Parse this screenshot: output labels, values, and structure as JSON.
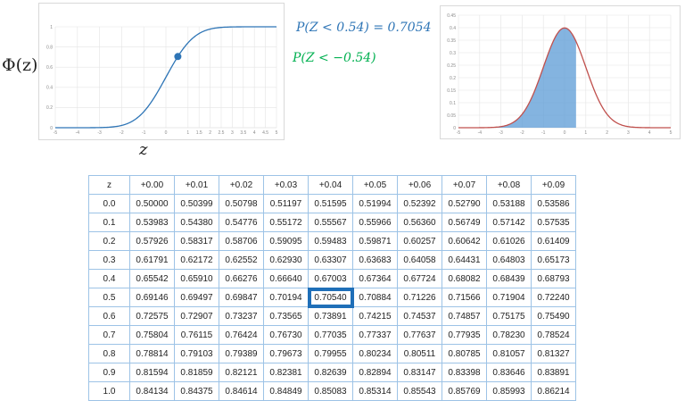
{
  "chart_data": [
    {
      "type": "line",
      "title": "",
      "xlabel": "z",
      "ylabel": "Φ(z)",
      "xlim": [
        -5,
        5
      ],
      "ylim": [
        0,
        1
      ],
      "x_ticks": [
        "-5",
        "-4",
        "-3",
        "-2",
        "-1",
        "0",
        "1",
        "1.5",
        "2",
        "2.5",
        "3",
        "3.5",
        "4",
        "4.5",
        "5"
      ],
      "x_tick_values": [
        -5,
        -4,
        -3,
        -2,
        -1,
        0,
        1,
        1.5,
        2,
        2.5,
        3,
        3.5,
        4,
        4.5,
        5
      ],
      "y_ticks": [
        "0",
        "0.2",
        "0.4",
        "0.6",
        "0.8",
        "1"
      ],
      "y_tick_values": [
        0,
        0.2,
        0.4,
        0.6,
        0.8,
        1
      ],
      "grid": true,
      "series": [
        {
          "function": "standard normal CDF",
          "color": "#2e75b6"
        }
      ],
      "highlight_point": {
        "x": 0.54,
        "y": 0.7054,
        "color": "#2e75b6"
      }
    },
    {
      "type": "area",
      "title": "",
      "xlabel": "",
      "ylabel": "",
      "xlim": [
        -5,
        5
      ],
      "ylim": [
        0,
        0.45
      ],
      "x_ticks": [
        "-5",
        "-4",
        "-3",
        "-2",
        "-1",
        "0",
        "1",
        "2",
        "3",
        "4",
        "5"
      ],
      "x_tick_values": [
        -5,
        -4,
        -3,
        -2,
        -1,
        0,
        1,
        2,
        3,
        4,
        5
      ],
      "y_ticks": [
        "0",
        "0.05",
        "0.1",
        "0.15",
        "0.2",
        "0.25",
        "0.3",
        "0.35",
        "0.4",
        "0.45"
      ],
      "y_tick_values": [
        0,
        0.05,
        0.1,
        0.15,
        0.2,
        0.25,
        0.3,
        0.35,
        0.4,
        0.45
      ],
      "grid": true,
      "series": [
        {
          "function": "standard normal PDF",
          "color": "#c0504d"
        }
      ],
      "shaded_region": {
        "from": -5,
        "to": 0.54,
        "color": "#5b9bd5"
      }
    },
    {
      "type": "table",
      "header": [
        "z",
        "+0.00",
        "+0.01",
        "+0.02",
        "+0.03",
        "+0.04",
        "+0.05",
        "+0.06",
        "+0.07",
        "+0.08",
        "+0.09"
      ],
      "rows": [
        [
          "0.0",
          "0.50000",
          "0.50399",
          "0.50798",
          "0.51197",
          "0.51595",
          "0.51994",
          "0.52392",
          "0.52790",
          "0.53188",
          "0.53586"
        ],
        [
          "0.1",
          "0.53983",
          "0.54380",
          "0.54776",
          "0.55172",
          "0.55567",
          "0.55966",
          "0.56360",
          "0.56749",
          "0.57142",
          "0.57535"
        ],
        [
          "0.2",
          "0.57926",
          "0.58317",
          "0.58706",
          "0.59095",
          "0.59483",
          "0.59871",
          "0.60257",
          "0.60642",
          "0.61026",
          "0.61409"
        ],
        [
          "0.3",
          "0.61791",
          "0.62172",
          "0.62552",
          "0.62930",
          "0.63307",
          "0.63683",
          "0.64058",
          "0.64431",
          "0.64803",
          "0.65173"
        ],
        [
          "0.4",
          "0.65542",
          "0.65910",
          "0.66276",
          "0.66640",
          "0.67003",
          "0.67364",
          "0.67724",
          "0.68082",
          "0.68439",
          "0.68793"
        ],
        [
          "0.5",
          "0.69146",
          "0.69497",
          "0.69847",
          "0.70194",
          "0.70540",
          "0.70884",
          "0.71226",
          "0.71566",
          "0.71904",
          "0.72240"
        ],
        [
          "0.6",
          "0.72575",
          "0.72907",
          "0.73237",
          "0.73565",
          "0.73891",
          "0.74215",
          "0.74537",
          "0.74857",
          "0.75175",
          "0.75490"
        ],
        [
          "0.7",
          "0.75804",
          "0.76115",
          "0.76424",
          "0.76730",
          "0.77035",
          "0.77337",
          "0.77637",
          "0.77935",
          "0.78230",
          "0.78524"
        ],
        [
          "0.8",
          "0.78814",
          "0.79103",
          "0.79389",
          "0.79673",
          "0.79955",
          "0.80234",
          "0.80511",
          "0.80785",
          "0.81057",
          "0.81327"
        ],
        [
          "0.9",
          "0.81594",
          "0.81859",
          "0.82121",
          "0.82381",
          "0.82639",
          "0.82894",
          "0.83147",
          "0.83398",
          "0.83646",
          "0.83891"
        ],
        [
          "1.0",
          "0.84134",
          "0.84375",
          "0.84614",
          "0.84849",
          "0.85083",
          "0.85314",
          "0.85543",
          "0.85769",
          "0.85993",
          "0.86214"
        ]
      ],
      "highlight_cell": {
        "row": "0.5",
        "column": "+0.04",
        "value": "0.70540",
        "color": "#1f6fb8"
      }
    }
  ],
  "annotations": {
    "phi_label": "Φ(z)",
    "z_label": "z",
    "formula_1": "P(Z < 0.54) = 0.7054",
    "formula_2": "P(Z < −0.54)"
  },
  "colors": {
    "cdf_line": "#2e75b6",
    "pdf_line": "#c0504d",
    "pdf_fill": "#5b9bd5",
    "formula_1": "#2e75b6",
    "formula_2": "#00b050",
    "table_border": "#9dc3e6",
    "table_highlight": "#1f6fb8"
  }
}
